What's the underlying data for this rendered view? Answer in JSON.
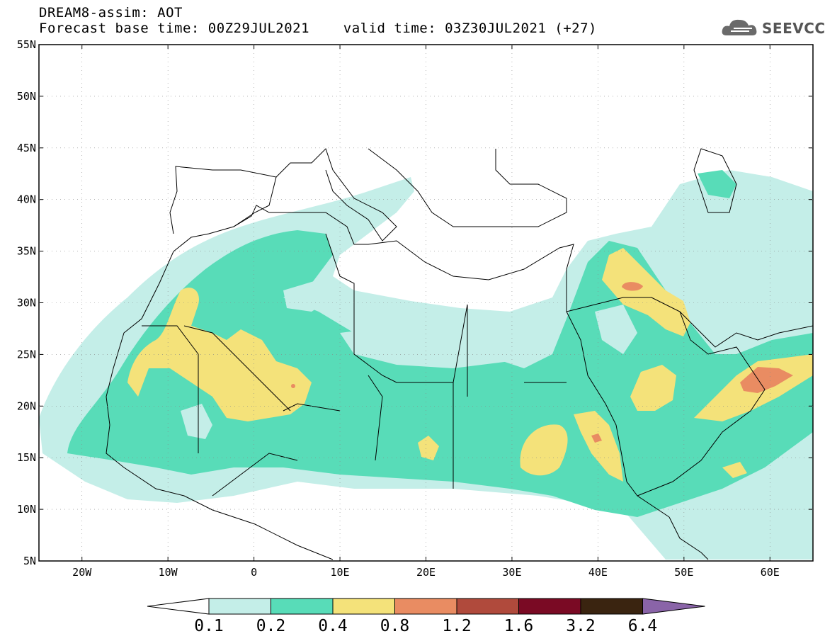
{
  "header": {
    "line1": "DREAM8-assim: AOT",
    "line2": "Forecast base time: 00Z29JUL2021    valid time: 03Z30JUL2021 (+27)"
  },
  "logo": {
    "text": "SEEVCCC",
    "icon": "cloud-icon"
  },
  "map": {
    "lon_range": [
      -25,
      65
    ],
    "lat_range": [
      5,
      55
    ],
    "lat_ticks": [
      "55N",
      "50N",
      "45N",
      "40N",
      "35N",
      "30N",
      "25N",
      "20N",
      "15N",
      "10N",
      "5N"
    ],
    "lon_ticks": [
      "20W",
      "10W",
      "0",
      "10E",
      "20E",
      "30E",
      "40E",
      "50E",
      "60E"
    ]
  },
  "colorbar": {
    "labels": [
      "0.1",
      "0.2",
      "0.4",
      "0.8",
      "1.2",
      "1.6",
      "3.2",
      "6.4"
    ],
    "colors": [
      "#c4eee8",
      "#58dcb8",
      "#f4e27a",
      "#e98c62",
      "#b04a3c",
      "#7a0a24",
      "#3a2410",
      "#8a64a8"
    ],
    "under_color": "#ffffff"
  }
}
